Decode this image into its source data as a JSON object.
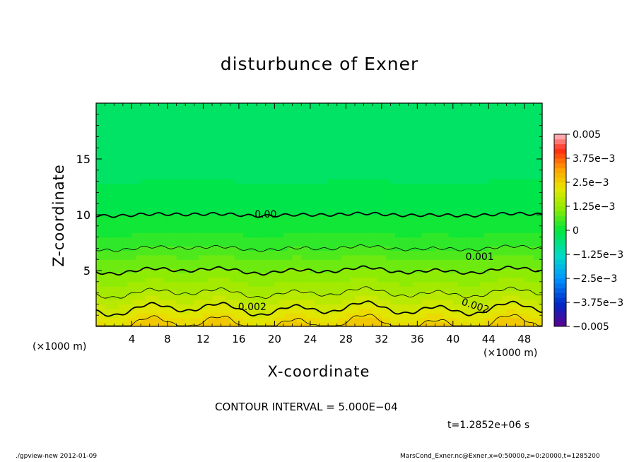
{
  "chart_data": {
    "type": "heatmap",
    "title": "disturbunce of Exner",
    "xlabel": "X-coordinate",
    "ylabel": "Z-coordinate",
    "x_unit_left": "(×1000 m)",
    "x_unit_right": "(×1000 m)",
    "xlim": [
      0,
      50
    ],
    "ylim": [
      0,
      20
    ],
    "xticks": [
      4,
      8,
      12,
      16,
      20,
      24,
      28,
      32,
      36,
      40,
      44,
      48
    ],
    "yticks": [
      5,
      10,
      15
    ],
    "colorbar": {
      "vmin": -0.005,
      "vmax": 0.005,
      "levels": 40,
      "tick_values": [
        0.005,
        0.00375,
        0.0025,
        0.00125,
        0,
        -0.00125,
        -0.0025,
        -0.00375,
        -0.005
      ],
      "tick_labels": [
        "0.005",
        "3.75e−3",
        "2.5e−3",
        "1.25e−3",
        "0",
        "−1.25e−3",
        "−2.5e−3",
        "−3.75e−3",
        "−0.005"
      ]
    },
    "contour_labels": [
      "0.00",
      "0.001",
      "0.002",
      "0.002"
    ],
    "contour_interval_text": "CONTOUR INTERVAL = 5.000E−04",
    "time_text": "t=1.2852e+06 s",
    "field_profile": {
      "z": [
        0,
        0.5,
        1,
        2,
        3,
        4,
        5,
        6,
        7,
        8,
        9,
        10,
        12,
        14,
        16,
        18,
        20
      ],
      "value": [
        0.0026,
        0.0024,
        0.0022,
        0.00185,
        0.0015,
        0.00125,
        0.001,
        0.0008,
        0.0005,
        0.0003,
        0.0001,
        0.0,
        -0.0002,
        -0.0003,
        -0.0004,
        -0.00045,
        -0.0005
      ]
    }
  },
  "footer": {
    "left": "./gpview-new   2012-01-09",
    "right": "MarsCond_Exner.nc@Exner,x=0:50000,z=0:20000,t=1285200"
  }
}
